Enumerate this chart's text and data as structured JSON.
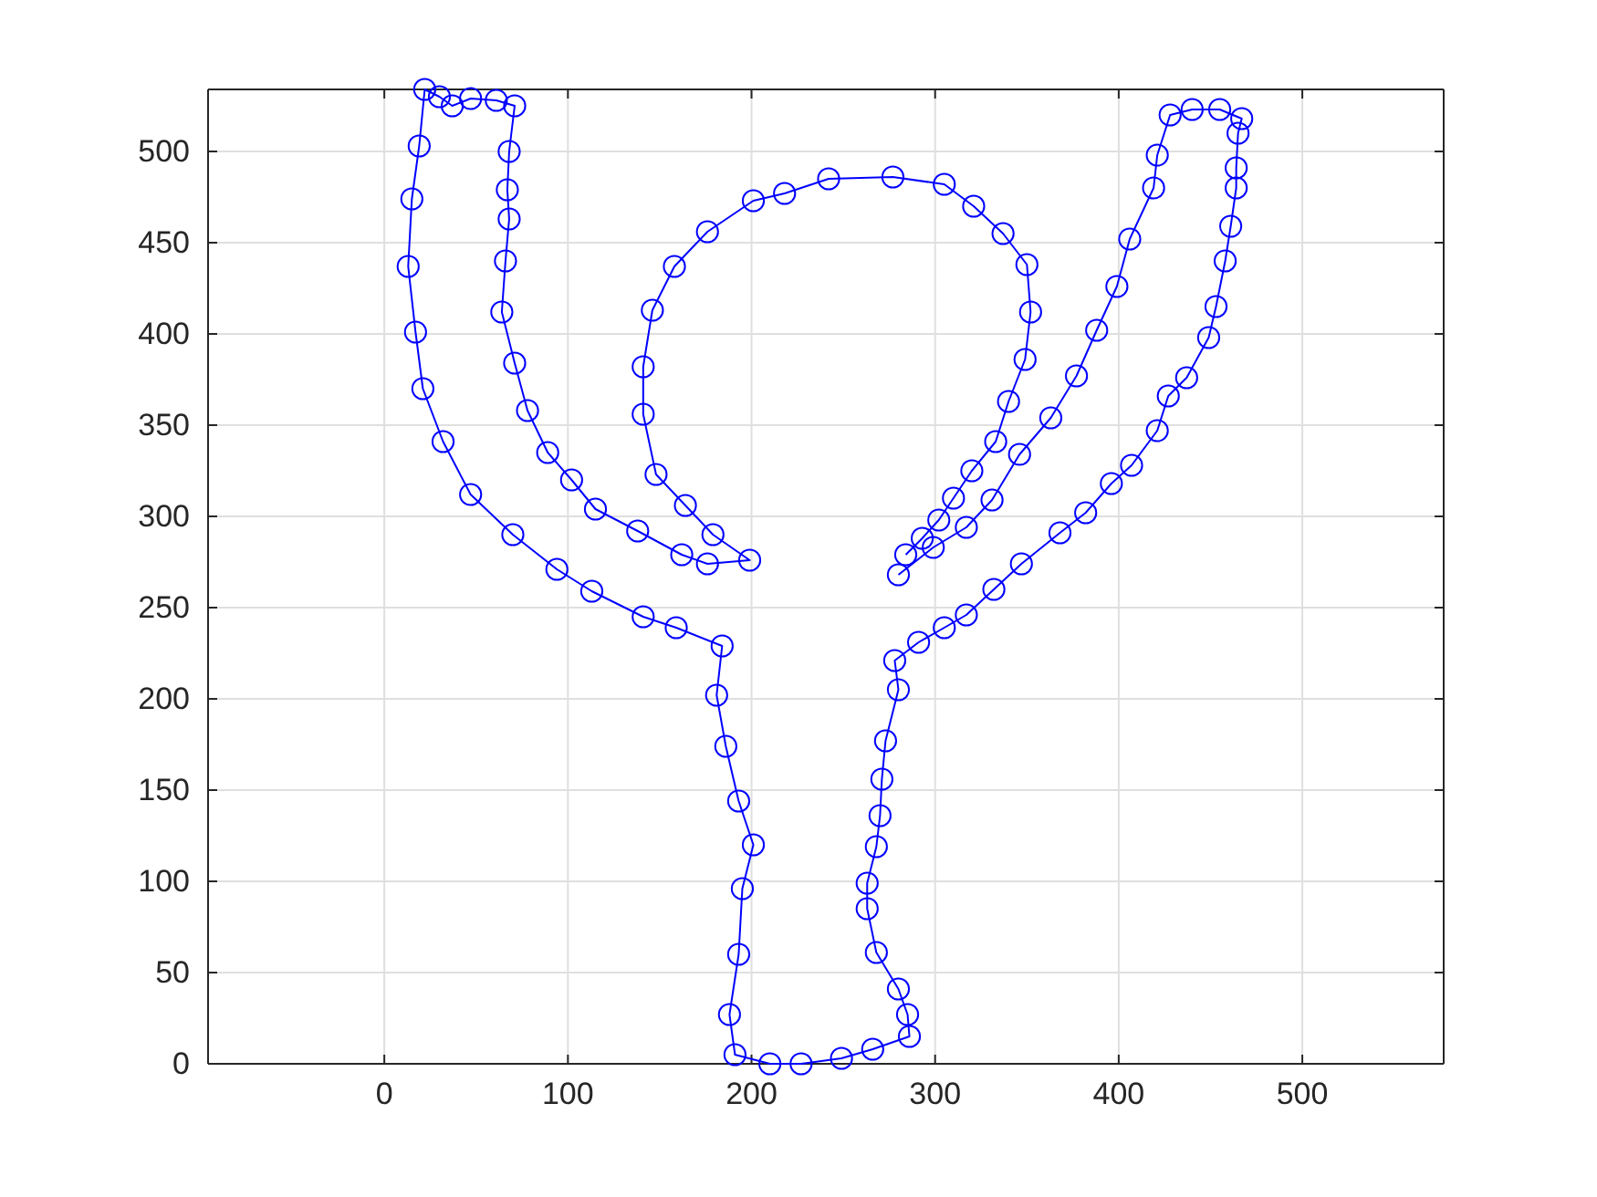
{
  "chart_data": {
    "type": "line",
    "marker": "circle",
    "line_style": "solid",
    "grid": true,
    "xlim": [
      -96,
      577
    ],
    "ylim": [
      0,
      534
    ],
    "xticks": [
      0,
      100,
      200,
      300,
      400,
      500
    ],
    "yticks": [
      0,
      50,
      100,
      150,
      200,
      250,
      300,
      350,
      400,
      450,
      500
    ],
    "x": [
      280,
      299,
      317,
      331,
      346,
      363,
      377,
      388,
      399,
      406,
      419,
      421,
      428,
      440,
      455,
      467,
      465,
      464,
      464,
      461,
      458,
      453,
      449,
      437,
      427,
      421,
      407,
      396,
      382,
      368,
      347,
      332,
      317,
      305,
      291,
      278,
      280,
      273,
      271,
      270,
      268,
      263,
      263,
      268,
      280,
      285,
      286,
      266,
      249,
      227,
      210,
      191,
      188,
      193,
      195,
      201,
      193,
      186,
      181,
      184,
      159,
      141,
      113,
      94,
      70,
      47,
      32,
      21,
      17,
      13,
      15,
      19,
      22,
      30,
      37,
      47,
      61,
      71,
      68,
      67,
      68,
      66,
      64,
      71,
      78,
      89,
      102,
      115,
      138,
      162,
      176,
      199,
      179,
      164,
      148,
      141,
      141,
      146,
      158,
      176,
      201,
      218,
      242,
      277,
      305,
      321,
      337,
      350,
      352,
      349,
      340,
      333,
      320,
      310,
      302,
      293,
      284
    ],
    "series": [
      {
        "color": "#0000ff",
        "values": [
          268,
          283,
          294,
          309,
          334,
          354,
          377,
          402,
          426,
          452,
          480,
          498,
          520,
          523,
          523,
          518,
          510,
          491,
          480,
          459,
          440,
          415,
          398,
          376,
          366,
          347,
          328,
          318,
          302,
          291,
          274,
          260,
          246,
          239,
          231,
          221,
          205,
          177,
          156,
          136,
          119,
          99,
          85,
          61,
          41,
          27,
          15,
          8,
          3,
          0,
          0,
          5,
          27,
          60,
          96,
          120,
          144,
          174,
          202,
          229,
          239,
          245,
          259,
          271,
          290,
          312,
          341,
          370,
          401,
          437,
          474,
          503,
          534,
          530,
          525,
          529,
          528,
          525,
          500,
          479,
          463,
          440,
          412,
          384,
          358,
          335,
          320,
          304,
          292,
          279,
          274,
          276,
          290,
          306,
          323,
          356,
          382,
          413,
          437,
          456,
          473,
          477,
          485,
          486,
          482,
          470,
          455,
          438,
          412,
          386,
          363,
          341,
          325,
          310,
          298,
          288,
          279
        ]
      }
    ]
  }
}
